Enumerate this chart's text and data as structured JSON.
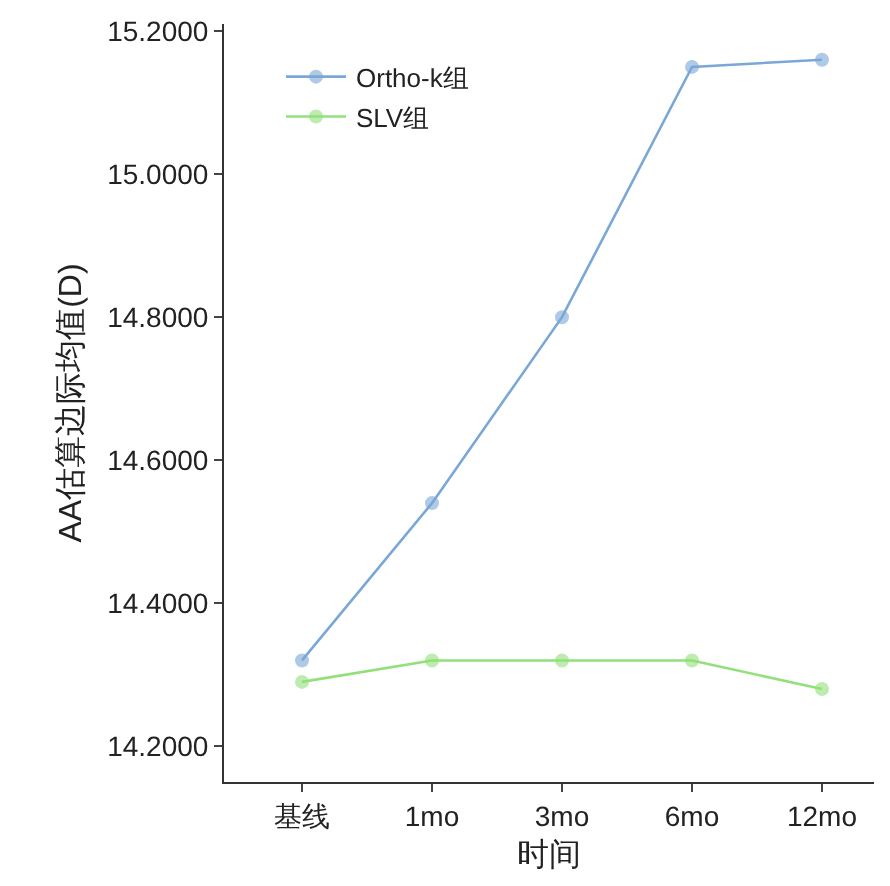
{
  "chart_data": {
    "type": "line",
    "xlabel": "时间",
    "ylabel": "AA估算边际均值(D)",
    "categories": [
      "基线",
      "1mo",
      "3mo",
      "6mo",
      "12mo"
    ],
    "series": [
      {
        "name": "Ortho-k组",
        "color": "#7ba7d7",
        "values": [
          14.32,
          14.54,
          14.8,
          15.15,
          15.16
        ]
      },
      {
        "name": "SLV组",
        "color": "#92e07a",
        "values": [
          14.29,
          14.32,
          14.32,
          14.32,
          14.28
        ]
      }
    ],
    "ylim": [
      14.15,
      15.21
    ],
    "yticks": [
      {
        "value": 14.2,
        "label": "14.2000"
      },
      {
        "value": 14.4,
        "label": "14.4000"
      },
      {
        "value": 14.6,
        "label": "14.6000"
      },
      {
        "value": 14.8,
        "label": "14.8000"
      },
      {
        "value": 15.0,
        "label": "15.0000"
      },
      {
        "value": 15.2,
        "label": "15.2000"
      }
    ],
    "grid": false,
    "legend": "top left",
    "marker": "circle",
    "line_style": "solid"
  }
}
